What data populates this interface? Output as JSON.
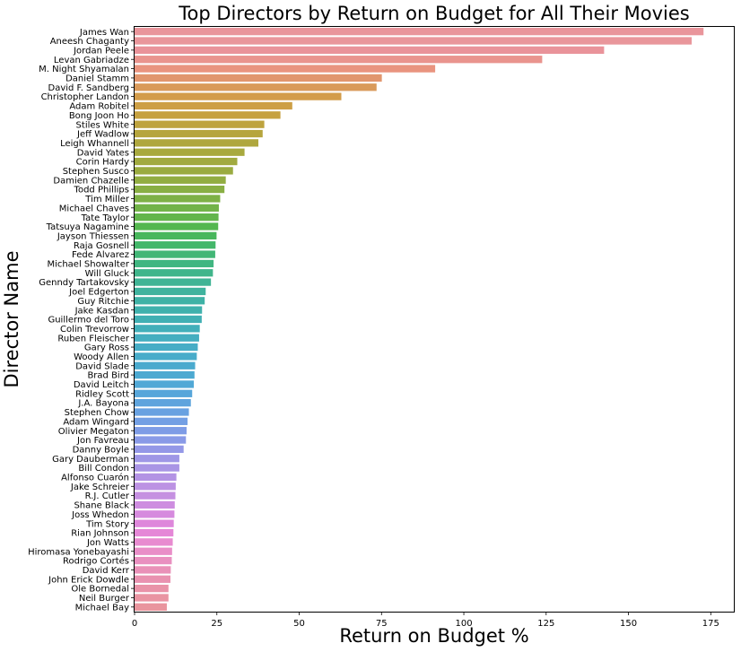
{
  "chart_data": {
    "type": "bar",
    "orientation": "horizontal",
    "title": "Top Directors by Return on Budget for All Their Movies",
    "xlabel": "Return on Budget %",
    "ylabel": "Director Name",
    "xlim": [
      0,
      182
    ],
    "xticks": [
      "0",
      "25",
      "50",
      "75",
      "100",
      "125",
      "150",
      "175"
    ],
    "grid": false,
    "categories": [
      "James Wan",
      "Aneesh Chaganty",
      "Jordan Peele",
      "Levan Gabriadze",
      "M. Night Shyamalan",
      "Daniel Stamm",
      "David F. Sandberg",
      "Christopher Landon",
      "Adam Robitel",
      "Bong Joon Ho",
      "Stiles White",
      "Jeff Wadlow",
      "Leigh Whannell",
      "David Yates",
      "Corin Hardy",
      "Stephen Susco",
      "Damien Chazelle",
      "Todd Phillips",
      "Tim Miller",
      "Michael Chaves",
      "Tate Taylor",
      "Tatsuya Nagamine",
      "Jayson Thiessen",
      "Raja Gosnell",
      "Fede Alvarez",
      "Michael Showalter",
      "Will Gluck",
      "Genndy Tartakovsky",
      "Joel Edgerton",
      "Guy Ritchie",
      "Jake Kasdan",
      "Guillermo del Toro",
      "Colin Trevorrow",
      "Ruben Fleischer",
      "Gary Ross",
      "Woody Allen",
      "David Slade",
      "Brad Bird",
      "David Leitch",
      "Ridley Scott",
      "J.A. Bayona",
      "Stephen Chow",
      "Adam Wingard",
      "Olivier Megaton",
      "Jon Favreau",
      "Danny Boyle",
      "Gary Dauberman",
      "Bill Condon",
      "Alfonso Cuarón",
      "Jake Schreier",
      "R.J. Cutler",
      "Shane Black",
      "Joss Whedon",
      "Tim Story",
      "Rian Johnson",
      "Jon Watts",
      "Hiromasa Yonebayashi",
      "Rodrigo Cortés",
      "David Kerr",
      "John Erick Dowdle",
      "Ole Bornedal",
      "Neil Burger",
      "Michael Bay"
    ],
    "values": [
      172.8,
      169.2,
      142.6,
      123.8,
      91.3,
      75.1,
      73.5,
      62.8,
      47.9,
      44.3,
      39.4,
      38.9,
      37.6,
      33.4,
      31.2,
      29.9,
      27.7,
      27.3,
      26.0,
      25.6,
      25.5,
      25.4,
      24.9,
      24.6,
      24.5,
      24.0,
      23.8,
      23.2,
      21.6,
      21.3,
      20.5,
      20.4,
      19.8,
      19.6,
      19.2,
      18.9,
      18.4,
      18.2,
      18.0,
      17.5,
      17.1,
      16.5,
      16.1,
      15.8,
      15.6,
      14.9,
      13.6,
      13.6,
      12.7,
      12.5,
      12.4,
      12.2,
      12.1,
      11.9,
      11.8,
      11.6,
      11.4,
      11.3,
      11.0,
      10.9,
      10.3,
      10.3,
      9.8
    ],
    "colors": [
      "#e9959b",
      "#e9969b",
      "#e9939a",
      "#e9948e",
      "#e9947f",
      "#e1966e",
      "#d99a5a",
      "#d39c4a",
      "#cd9f45",
      "#c6a140",
      "#bea33e",
      "#b6a53d",
      "#afa73e",
      "#a8a93e",
      "#a1aa3f",
      "#9aab40",
      "#92ad42",
      "#89af44",
      "#7eb146",
      "#72b348",
      "#63b54b",
      "#54b74f",
      "#48b75c",
      "#44b76a",
      "#42b676",
      "#41b681",
      "#40b58b",
      "#40b495",
      "#3fb39e",
      "#3fb2a6",
      "#40b1ad",
      "#41b0b4",
      "#42afba",
      "#44aec0",
      "#46adc6",
      "#48acca",
      "#4aaace",
      "#4da9d1",
      "#51a8d6",
      "#57a6da",
      "#5fa4dd",
      "#68a1e1",
      "#739fe4",
      "#7e9ce6",
      "#899ae7",
      "#9498e7",
      "#9f97e6",
      "#a995e5",
      "#b393e4",
      "#bc92e3",
      "#c590e1",
      "#ce8de0",
      "#d68ade",
      "#de87db",
      "#e587d7",
      "#e88bd0",
      "#e98ec8",
      "#e990c0",
      "#e991b8",
      "#e992b0",
      "#e993a8",
      "#e994a2",
      "#e9959e"
    ]
  }
}
